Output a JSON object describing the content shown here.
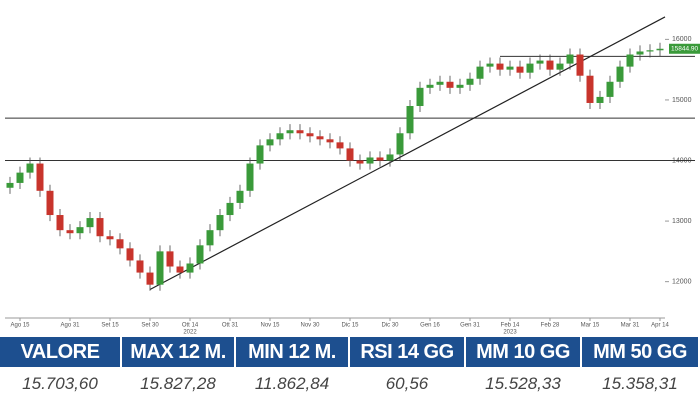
{
  "chart_data": {
    "type": "candlestick",
    "x": [
      null,
      "Ago 15",
      null,
      null,
      null,
      null,
      "Ago 31",
      null,
      null,
      null,
      "Set 15",
      null,
      null,
      null,
      "Set 30",
      null,
      null,
      null,
      "Ott 14",
      null,
      null,
      null,
      "Ott 31",
      null,
      null,
      null,
      "Nov 15",
      null,
      null,
      null,
      "Nov 30",
      null,
      null,
      null,
      "Dic 15",
      null,
      null,
      null,
      "Dic 30",
      null,
      null,
      null,
      "Gen 16",
      null,
      null,
      null,
      "Gen 31",
      null,
      null,
      null,
      "Feb 14",
      null,
      null,
      null,
      "Feb 28",
      null,
      null,
      null,
      "Mar 15",
      null,
      null,
      null,
      "Mar 31",
      null,
      null,
      "Apr 14"
    ],
    "open": [
      13550,
      13630,
      13800,
      13950,
      13500,
      13100,
      12850,
      12800,
      12900,
      13050,
      12750,
      12700,
      12550,
      12350,
      12150,
      11950,
      12500,
      12250,
      12150,
      12300,
      12600,
      12850,
      13100,
      13300,
      13500,
      13950,
      14250,
      14350,
      14450,
      14500,
      14450,
      14400,
      14350,
      14300,
      14200,
      14000,
      13950,
      14050,
      14000,
      14100,
      14450,
      14900,
      15200,
      15250,
      15300,
      15200,
      15250,
      15350,
      15550,
      15600,
      15500,
      15550,
      15450,
      15600,
      15650,
      15500,
      15600,
      15750,
      15400,
      14950,
      15050,
      15300,
      15550,
      15750,
      15800,
      15820
    ],
    "high": [
      13730,
      13900,
      14050,
      14050,
      13600,
      13200,
      12950,
      13000,
      13150,
      13150,
      12850,
      12800,
      12650,
      12450,
      12250,
      12600,
      12600,
      12350,
      12400,
      12700,
      12950,
      13200,
      13400,
      13600,
      14050,
      14350,
      14450,
      14550,
      14600,
      14600,
      14550,
      14500,
      14450,
      14400,
      14300,
      14100,
      14150,
      14150,
      14200,
      14550,
      15000,
      15300,
      15350,
      15400,
      15400,
      15350,
      15450,
      15650,
      15700,
      15700,
      15650,
      15650,
      15700,
      15750,
      15750,
      15700,
      15850,
      15850,
      15500,
      15150,
      15400,
      15650,
      15850,
      15900,
      15920,
      15944.9
    ],
    "low": [
      13450,
      13530,
      13700,
      13400,
      13000,
      12750,
      12700,
      12700,
      12800,
      12650,
      12600,
      12450,
      12250,
      12050,
      11850,
      11850,
      12150,
      12050,
      12050,
      12200,
      12500,
      12750,
      13000,
      13200,
      13400,
      13850,
      14150,
      14250,
      14350,
      14350,
      14300,
      14250,
      14200,
      14100,
      13900,
      13850,
      13850,
      13900,
      13900,
      14000,
      14350,
      14800,
      15100,
      15150,
      15100,
      15100,
      15150,
      15250,
      15450,
      15400,
      15400,
      15350,
      15350,
      15500,
      15400,
      15400,
      15500,
      15300,
      14850,
      14850,
      14950,
      15200,
      15450,
      15650,
      15700,
      15720
    ],
    "close": [
      13630,
      13800,
      13950,
      13500,
      13100,
      12850,
      12800,
      12900,
      13050,
      12750,
      12700,
      12550,
      12350,
      12150,
      11950,
      12500,
      12250,
      12150,
      12300,
      12600,
      12850,
      13100,
      13300,
      13500,
      13950,
      14250,
      14350,
      14450,
      14500,
      14450,
      14400,
      14350,
      14300,
      14200,
      14000,
      13950,
      14050,
      14000,
      14100,
      14450,
      14900,
      15200,
      15250,
      15300,
      15200,
      15250,
      15350,
      15550,
      15600,
      15500,
      15550,
      15450,
      15600,
      15650,
      15500,
      15600,
      15750,
      15400,
      14950,
      15050,
      15300,
      15550,
      15750,
      15800,
      15820,
      15844.9
    ],
    "up_color": "#3a9a3a",
    "down_color": "#c8342c",
    "ylim": [
      11400,
      16650
    ],
    "yticks": [
      12000,
      13000,
      14000,
      15000,
      16000
    ],
    "levels": [
      14700,
      14000
    ],
    "short_level": {
      "value": 15720,
      "from": 49
    },
    "trendline": {
      "from": {
        "x": 14,
        "y": 11870
      },
      "to": {
        "x": 65.5,
        "y": 16370
      }
    },
    "years": [
      {
        "at": 18,
        "label": "2022"
      },
      {
        "at": 50,
        "label": "2023"
      }
    ],
    "last_price": {
      "value": 15844.9,
      "label": "15844.90"
    }
  },
  "table": {
    "header": [
      "VALORE",
      "MAX 12 M.",
      "MIN 12 M.",
      "RSI 14 GG",
      "MM 10 GG",
      "MM 50 GG"
    ],
    "row": [
      "15.703,60",
      "15.827,28",
      "11.862,84",
      "60,56",
      "15.528,33",
      "15.358,31"
    ]
  }
}
